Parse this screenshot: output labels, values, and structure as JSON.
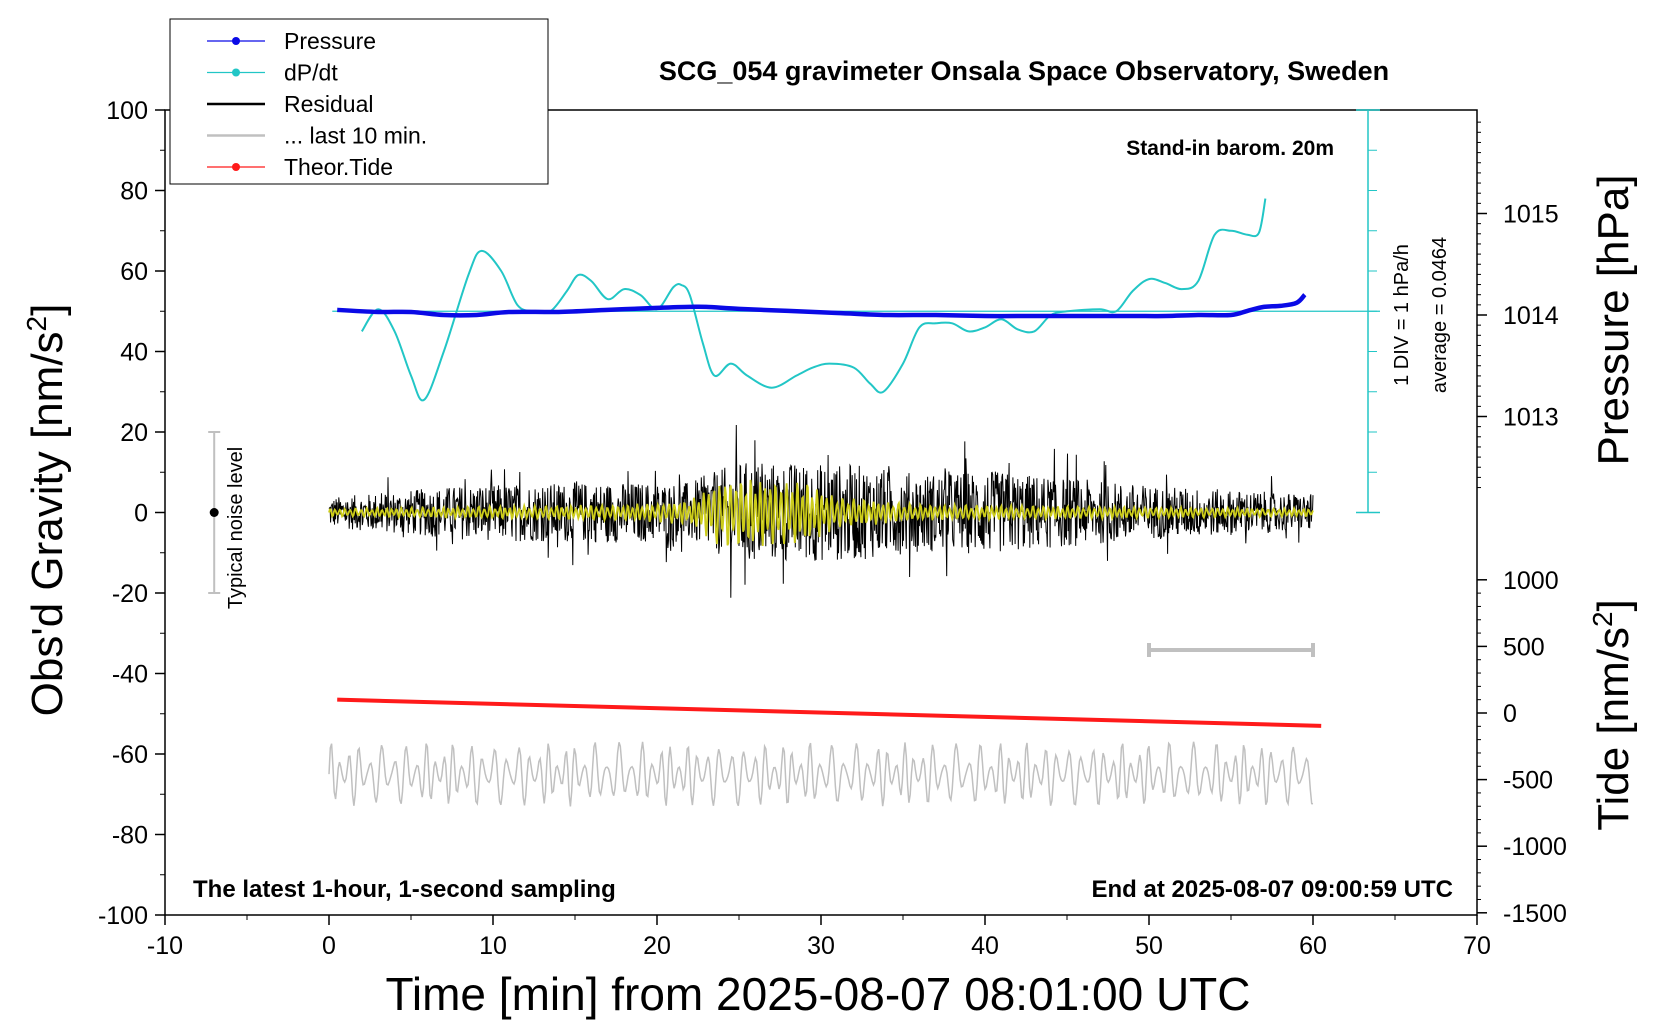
{
  "chart_data": {
    "type": "line",
    "title": "SCG_054 gravimeter Onsala Space Observatory, Sweden",
    "xlabel": "Time [min] from 2025-08-07 08:01:00 UTC",
    "ylabel_left": "Obs'd Gravity [nm/s",
    "ylabel_left_sup": "2",
    "ylabel_left_end": "]",
    "ylabel_right_top": "Pressure [hPa]",
    "ylabel_right_bottom": "Tide [nm/s",
    "ylabel_right_bottom_sup": "2",
    "ylabel_right_bottom_end": "]",
    "xlim": [
      -10,
      70
    ],
    "ylim": [
      -100,
      100
    ],
    "x_ticks": [
      "-10",
      "0",
      "10",
      "20",
      "30",
      "40",
      "50",
      "60",
      "70"
    ],
    "y_ticks": [
      "100",
      "80",
      "60",
      "40",
      "20",
      "0",
      "-20",
      "-40",
      "-60",
      "-80",
      "-100"
    ],
    "pressure_ticks": [
      "1015",
      "1014",
      "1013"
    ],
    "tide_ticks": [
      "1000",
      "500",
      "0",
      "-500",
      "-1000",
      "-1500"
    ],
    "legend": [
      {
        "label": "Pressure",
        "color": "#0a0ae6"
      },
      {
        "label": "dP/dt",
        "color": "#22c6c6"
      },
      {
        "label": "Residual",
        "color": "#000000"
      },
      {
        "label": "... last 10 min.",
        "color": "#c0c0c0"
      },
      {
        "label": "Theor.Tide",
        "color": "#ff1a1a"
      }
    ],
    "annotations": {
      "stand_in": "Stand-in barom. 20m",
      "div_label": "1 DIV = 1 hPa/h",
      "average_label": "average = 0.0464",
      "noise_label": "Typical noise level",
      "bottom_left": "The latest 1-hour, 1-second sampling",
      "bottom_right": "End at 2025-08-07 09:00:59 UTC"
    },
    "series": [
      {
        "name": "Pressure",
        "unit": "hPa",
        "color": "#0a0ae6",
        "x": [
          0.5,
          3,
          5,
          7,
          9,
          11,
          14,
          17,
          20,
          22,
          23,
          25,
          28,
          31,
          34,
          37,
          40,
          43,
          46,
          49,
          51,
          53,
          55,
          56,
          57,
          58,
          59,
          59.5
        ],
        "values": [
          1014.05,
          1014.03,
          1014.03,
          1014.0,
          1014.0,
          1014.03,
          1014.03,
          1014.05,
          1014.07,
          1014.08,
          1014.08,
          1014.06,
          1014.04,
          1014.02,
          1014.0,
          1014.0,
          1013.99,
          1013.99,
          1013.99,
          1013.99,
          1013.99,
          1014.0,
          1014.0,
          1014.04,
          1014.08,
          1014.09,
          1014.12,
          1014.2
        ]
      },
      {
        "name": "dP/dt",
        "unit": "DIV (0 at y=50)",
        "color": "#22c6c6",
        "x": [
          2,
          3,
          4,
          5,
          5.8,
          7,
          8.5,
          9.3,
          10.5,
          11.5,
          12.5,
          13.5,
          14.5,
          15.2,
          16,
          17,
          18,
          19,
          20,
          21,
          21.5,
          22,
          22.8,
          23.5,
          24.5,
          25.5,
          27,
          28.5,
          29.5,
          30.5,
          32,
          33,
          33.8,
          35,
          36,
          37,
          38,
          39,
          40,
          41,
          42,
          43,
          44,
          45,
          47,
          48,
          49,
          50,
          51,
          52,
          53,
          54,
          55,
          56,
          56.7,
          57.1
        ],
        "values": [
          -0.5,
          0.05,
          -0.5,
          -1.6,
          -2.2,
          -1.0,
          0.9,
          1.5,
          1.0,
          0.15,
          0.0,
          0.0,
          0.5,
          0.9,
          0.75,
          0.3,
          0.55,
          0.4,
          0.05,
          0.6,
          0.65,
          0.4,
          -0.8,
          -1.6,
          -1.3,
          -1.6,
          -1.9,
          -1.6,
          -1.4,
          -1.3,
          -1.4,
          -1.8,
          -2.0,
          -1.3,
          -0.4,
          -0.3,
          -0.3,
          -0.5,
          -0.4,
          -0.2,
          -0.45,
          -0.5,
          -0.1,
          0.0,
          0.05,
          0.0,
          0.5,
          0.8,
          0.7,
          0.55,
          0.75,
          1.9,
          2.0,
          1.9,
          1.95,
          2.8
        ]
      },
      {
        "name": "Residual",
        "unit": "nm/s2",
        "color": "#000000",
        "x_range": [
          0,
          60
        ],
        "amplitude_envelope": [
          [
            0,
            5
          ],
          [
            8,
            9
          ],
          [
            15,
            10
          ],
          [
            22,
            10
          ],
          [
            25,
            17
          ],
          [
            32,
            16
          ],
          [
            36,
            13
          ],
          [
            40,
            14
          ],
          [
            50,
            9
          ],
          [
            60,
            6
          ]
        ]
      },
      {
        "name": "... last 10 min. (yellow overlay)",
        "unit": "nm/s2",
        "color": "#cccc1a",
        "x_range": [
          0,
          60
        ],
        "amplitude_envelope": [
          [
            0,
            1
          ],
          [
            18,
            2
          ],
          [
            22,
            3
          ],
          [
            24,
            9
          ],
          [
            29,
            8
          ],
          [
            31,
            4
          ],
          [
            36,
            2
          ],
          [
            60,
            1
          ]
        ]
      },
      {
        "name": "... last 10 min.",
        "unit": "nm/s2 (offset)",
        "color": "#c0c0c0",
        "x_range": [
          0,
          60
        ],
        "baseline": -65,
        "amplitude": 7
      },
      {
        "name": "Theor.Tide",
        "unit": "nm/s2",
        "color": "#ff1a1a",
        "x": [
          0.5,
          60.5
        ],
        "values": [
          -46.5,
          -53
        ]
      }
    ],
    "noise_bar": {
      "x": -7,
      "y_range": [
        -20,
        20
      ]
    },
    "window_bar": {
      "x_range": [
        50,
        60
      ]
    }
  }
}
